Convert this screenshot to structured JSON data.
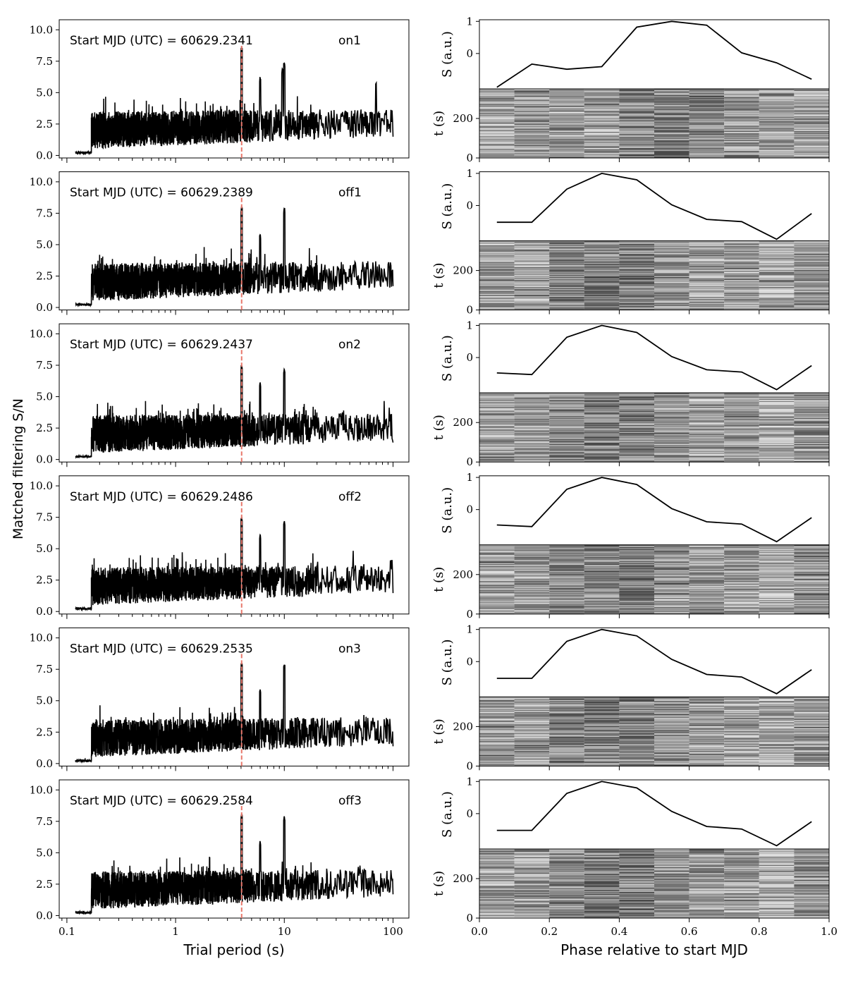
{
  "chart_data": {
    "type": "line",
    "shared": {
      "left_ylabel": "Matched filtering S/N",
      "left_xlabel": "Trial period (s)",
      "left_xscale": "log",
      "left_xlim": [
        0.085,
        140
      ],
      "left_ylim": [
        -0.2,
        10.8
      ],
      "left_yticks": [
        "0.0",
        "2.5",
        "5.0",
        "7.5",
        "10.0"
      ],
      "left_xticks": [
        "0.1",
        "1",
        "10",
        "100"
      ],
      "candidate_period": 4.05,
      "candidate_line_color": "#e8776b",
      "profile_ylabel": "S (a.u.)",
      "waterfall_ylabel": "t (s)",
      "right_xlabel": "Phase relative to start MJD",
      "right_xticks": [
        "0.0",
        "0.2",
        "0.4",
        "0.6",
        "0.8",
        "1.0"
      ],
      "right_xlim": [
        0,
        1
      ],
      "profile_yticks": [
        "0",
        "1"
      ],
      "waterfall_yticks": [
        "0",
        "200"
      ],
      "waterfall_ylim": [
        0,
        350
      ],
      "phase_bins": [
        0.05,
        0.15,
        0.25,
        0.35,
        0.45,
        0.55,
        0.65,
        0.75,
        0.85,
        0.95
      ]
    },
    "panels": [
      {
        "start_label": "Start MJD (UTC) = 60629.2341",
        "tag": "on1",
        "peaks": [
          [
            4.05,
            8.6
          ],
          [
            10.0,
            7.4
          ],
          [
            9.6,
            6.9
          ],
          [
            6.0,
            6.2
          ],
          [
            70,
            5.8
          ]
        ],
        "profile": [
          -1.05,
          -0.33,
          -0.49,
          -0.41,
          0.82,
          1.0,
          0.88,
          0.02,
          -0.29,
          -0.8
        ]
      },
      {
        "start_label": "Start MJD (UTC) = 60629.2389",
        "tag": "off1",
        "peaks": [
          [
            4.05,
            8.0
          ],
          [
            10.0,
            7.9
          ],
          [
            6.0,
            5.8
          ]
        ],
        "profile": [
          -0.52,
          -0.52,
          0.51,
          1.0,
          0.8,
          0.02,
          -0.43,
          -0.5,
          -1.05,
          -0.25
        ]
      },
      {
        "start_label": "Start MJD (UTC) = 60629.2437",
        "tag": "on2",
        "peaks": [
          [
            4.05,
            7.5
          ],
          [
            10.0,
            7.2
          ],
          [
            6.0,
            6.1
          ]
        ],
        "profile": [
          -0.48,
          -0.53,
          0.63,
          1.0,
          0.78,
          0.03,
          -0.38,
          -0.45,
          -1.0,
          -0.25
        ]
      },
      {
        "start_label": "Start MJD (UTC) = 60629.2486",
        "tag": "off2",
        "peaks": [
          [
            4.05,
            7.5
          ],
          [
            10.0,
            7.2
          ],
          [
            6.0,
            6.1
          ]
        ],
        "profile": [
          -0.48,
          -0.53,
          0.63,
          1.0,
          0.78,
          0.03,
          -0.38,
          -0.45,
          -1.0,
          -0.25
        ]
      },
      {
        "start_label": "Start MJD (UTC) = 60629.2535",
        "tag": "on3",
        "peaks": [
          [
            4.05,
            8.0
          ],
          [
            10.0,
            7.9
          ],
          [
            6.0,
            5.9
          ]
        ],
        "profile": [
          -0.52,
          -0.52,
          0.63,
          1.0,
          0.8,
          0.07,
          -0.4,
          -0.48,
          -1.0,
          -0.25
        ]
      },
      {
        "start_label": "Start MJD (UTC) = 60629.2584",
        "tag": "off3",
        "peaks": [
          [
            4.05,
            8.0
          ],
          [
            10.0,
            7.9
          ],
          [
            6.0,
            5.9
          ]
        ],
        "profile": [
          -0.52,
          -0.52,
          0.63,
          1.0,
          0.8,
          0.07,
          -0.4,
          -0.48,
          -1.0,
          -0.25
        ]
      }
    ]
  }
}
